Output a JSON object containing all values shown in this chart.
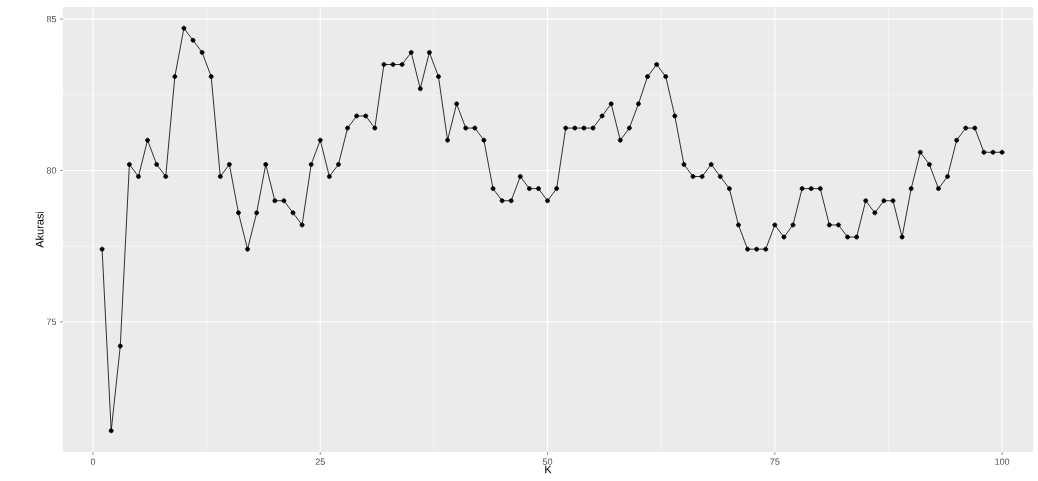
{
  "chart_data": {
    "type": "line",
    "xlabel": "K",
    "ylabel": "Akurasi",
    "x": [
      1,
      2,
      3,
      4,
      5,
      6,
      7,
      8,
      9,
      10,
      11,
      12,
      13,
      14,
      15,
      16,
      17,
      18,
      19,
      20,
      21,
      22,
      23,
      24,
      25,
      26,
      27,
      28,
      29,
      30,
      31,
      32,
      33,
      34,
      35,
      36,
      37,
      38,
      39,
      40,
      41,
      42,
      43,
      44,
      45,
      46,
      47,
      48,
      49,
      50,
      51,
      52,
      53,
      54,
      55,
      56,
      57,
      58,
      59,
      60,
      61,
      62,
      63,
      64,
      65,
      66,
      67,
      68,
      69,
      70,
      71,
      72,
      73,
      74,
      75,
      76,
      77,
      78,
      79,
      80,
      81,
      82,
      83,
      84,
      85,
      86,
      87,
      88,
      89,
      90,
      91,
      92,
      93,
      94,
      95,
      96,
      97,
      98,
      99,
      100
    ],
    "values": [
      77.4,
      71.4,
      74.2,
      80.2,
      79.8,
      81.0,
      80.2,
      79.8,
      83.1,
      84.7,
      84.3,
      83.9,
      83.1,
      79.8,
      80.2,
      78.6,
      77.4,
      78.6,
      80.2,
      79.0,
      79.0,
      78.6,
      78.2,
      80.2,
      81.0,
      79.8,
      80.2,
      81.4,
      81.8,
      81.8,
      81.4,
      83.5,
      83.5,
      83.5,
      83.9,
      82.7,
      83.9,
      83.1,
      81.0,
      82.2,
      81.4,
      81.4,
      81.0,
      79.4,
      79.0,
      79.0,
      79.8,
      79.4,
      79.4,
      79.0,
      79.4,
      81.4,
      81.4,
      81.4,
      81.4,
      81.8,
      82.2,
      81.0,
      81.4,
      82.2,
      83.1,
      83.5,
      83.1,
      81.8,
      80.2,
      79.8,
      79.8,
      80.2,
      79.8,
      79.4,
      78.2,
      77.4,
      77.4,
      77.4,
      78.2,
      77.8,
      78.2,
      79.4,
      79.4,
      79.4,
      78.2,
      78.2,
      77.8,
      77.8,
      79.0,
      78.6,
      79.0,
      79.0,
      77.8,
      79.4,
      80.6,
      80.2,
      79.4,
      79.8,
      81.0,
      81.4,
      81.4,
      80.6,
      80.6,
      80.6
    ],
    "color": "#000000",
    "marker": "circle",
    "line_style": "solid",
    "grid": true,
    "xlim": [
      -3.3,
      103.4
    ],
    "ylim": [
      70.7,
      85.4
    ],
    "xticks": [
      0,
      25,
      50,
      75,
      100
    ],
    "yticks": [
      75,
      80,
      85
    ]
  }
}
